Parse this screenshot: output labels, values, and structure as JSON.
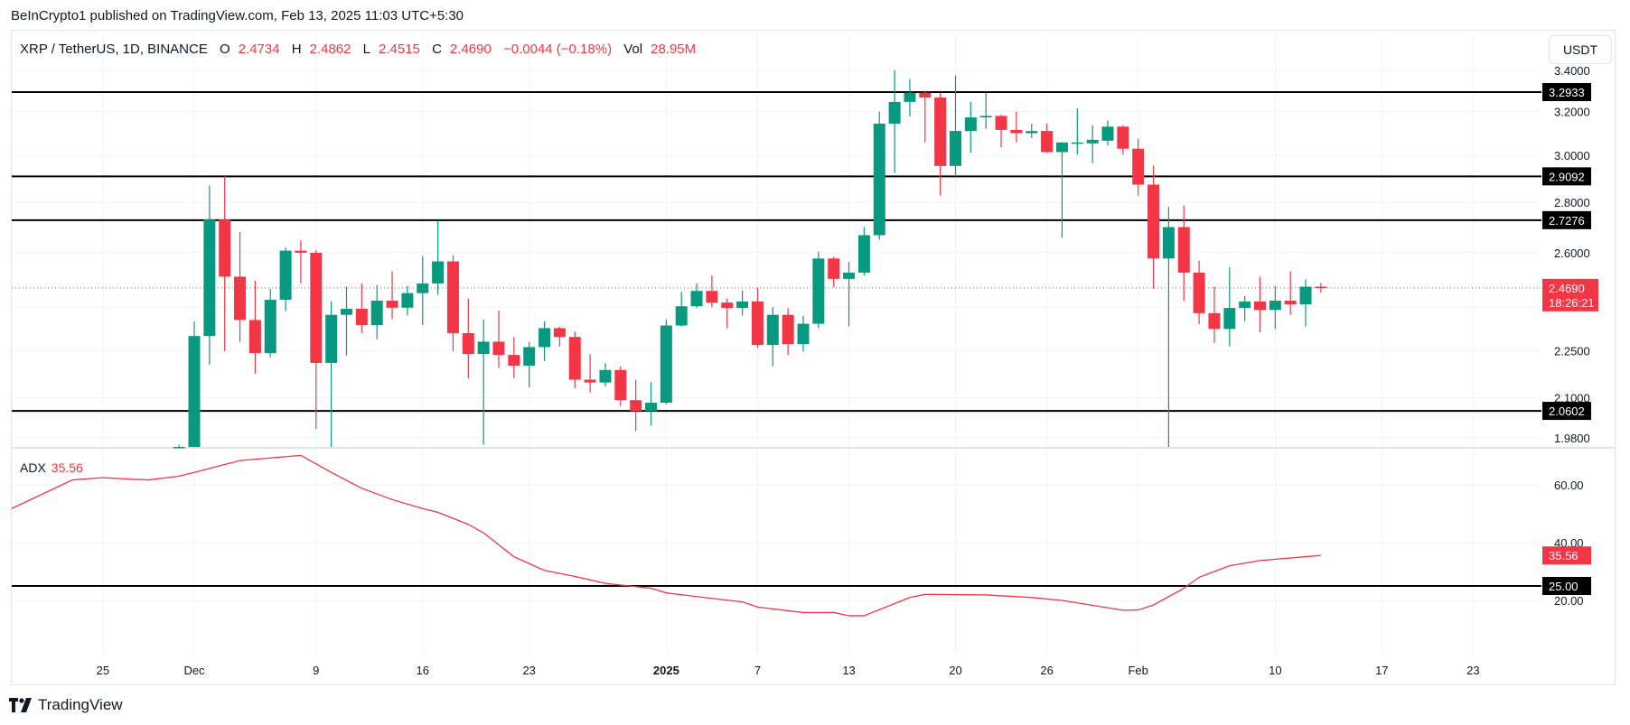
{
  "publisher_line": "BeInCrypto1 published on TradingView.com, Feb 13, 2025 11:03 UTC+5:30",
  "legend": {
    "symbol": "XRP / TetherUS, 1D, BINANCE",
    "o_label": "O",
    "o": "2.4734",
    "h_label": "H",
    "h": "2.4862",
    "l_label": "L",
    "l": "2.4515",
    "c_label": "C",
    "c": "2.4690",
    "change": "−0.0044 (−0.18%)",
    "vol_label": "Vol",
    "vol": "28.95M"
  },
  "currency_button": "USDT",
  "brand": "TradingView",
  "colors": {
    "up": "#089981",
    "down": "#F23645",
    "level": "#000000",
    "adx": "#F23645"
  },
  "chart_data": [
    {
      "type": "candlestick",
      "title": "",
      "y_scale": "log",
      "ylim": [
        1.98,
        3.4
      ],
      "grid": true,
      "y_ticks": [
        {
          "value": 3.4,
          "label": "3.4000"
        },
        {
          "value": 3.2,
          "label": "3.2000"
        },
        {
          "value": 3.0,
          "label": "3.0000"
        },
        {
          "value": 2.8,
          "label": "2.8000"
        },
        {
          "value": 2.6,
          "label": "2.6000"
        },
        {
          "value": 2.25,
          "label": "2.2500"
        },
        {
          "value": 2.1,
          "label": "2.1000"
        },
        {
          "value": 1.98,
          "label": "1.9800"
        }
      ],
      "horizontal_levels": [
        {
          "value": 3.2933,
          "label": "3.2933"
        },
        {
          "value": 2.9092,
          "label": "2.9092"
        },
        {
          "value": 2.7276,
          "label": "2.7276"
        },
        {
          "value": 2.0602,
          "label": "2.0602"
        }
      ],
      "last_price": {
        "value": 2.469,
        "label": "2.4690",
        "countdown": "18:26:21"
      },
      "x_ticks": [
        {
          "date": "2024-11-25",
          "label": "25"
        },
        {
          "date": "2024-12-01",
          "label": "Dec"
        },
        {
          "date": "2024-12-09",
          "label": "9"
        },
        {
          "date": "2024-12-16",
          "label": "16"
        },
        {
          "date": "2024-12-23",
          "label": "23"
        },
        {
          "date": "2025-01-01",
          "label": "2025",
          "bold": true
        },
        {
          "date": "2025-01-07",
          "label": "7"
        },
        {
          "date": "2025-01-13",
          "label": "13"
        },
        {
          "date": "2025-01-20",
          "label": "20"
        },
        {
          "date": "2025-01-26",
          "label": "26"
        },
        {
          "date": "2025-02-01",
          "label": "Feb"
        },
        {
          "date": "2025-02-10",
          "label": "10"
        },
        {
          "date": "2025-02-17",
          "label": "17"
        },
        {
          "date": "2025-02-23",
          "label": "23"
        }
      ],
      "columns": [
        "date",
        "open",
        "high",
        "low",
        "close"
      ],
      "candles": [
        [
          "2024-11-30",
          1.93,
          1.96,
          1.9,
          1.95
        ],
        [
          "2024-12-01",
          1.95,
          2.35,
          1.9,
          2.3
        ],
        [
          "2024-12-02",
          2.3,
          2.87,
          2.205,
          2.73
        ],
        [
          "2024-12-03",
          2.73,
          2.91,
          2.25,
          2.51
        ],
        [
          "2024-12-04",
          2.51,
          2.68,
          2.28,
          2.355
        ],
        [
          "2024-12-05",
          2.355,
          2.495,
          2.176,
          2.243
        ],
        [
          "2024-12-06",
          2.243,
          2.466,
          2.229,
          2.426
        ],
        [
          "2024-12-07",
          2.426,
          2.62,
          2.386,
          2.608
        ],
        [
          "2024-12-08",
          2.608,
          2.648,
          2.485,
          2.6
        ],
        [
          "2024-12-09",
          2.6,
          2.61,
          2.006,
          2.211
        ],
        [
          "2024-12-10",
          2.211,
          2.42,
          1.93,
          2.373
        ],
        [
          "2024-12-11",
          2.373,
          2.474,
          2.235,
          2.394
        ],
        [
          "2024-12-12",
          2.394,
          2.485,
          2.31,
          2.337
        ],
        [
          "2024-12-13",
          2.337,
          2.48,
          2.289,
          2.423
        ],
        [
          "2024-12-14",
          2.423,
          2.53,
          2.358,
          2.398
        ],
        [
          "2024-12-15",
          2.398,
          2.476,
          2.371,
          2.45
        ],
        [
          "2024-12-16",
          2.45,
          2.587,
          2.337,
          2.485
        ],
        [
          "2024-12-17",
          2.485,
          2.727,
          2.445,
          2.567
        ],
        [
          "2024-12-18",
          2.567,
          2.59,
          2.249,
          2.31
        ],
        [
          "2024-12-19",
          2.31,
          2.43,
          2.162,
          2.24
        ],
        [
          "2024-12-20",
          2.24,
          2.357,
          1.96,
          2.281
        ],
        [
          "2024-12-21",
          2.281,
          2.388,
          2.194,
          2.237
        ],
        [
          "2024-12-22",
          2.237,
          2.297,
          2.162,
          2.202
        ],
        [
          "2024-12-23",
          2.202,
          2.28,
          2.133,
          2.263
        ],
        [
          "2024-12-24",
          2.263,
          2.351,
          2.217,
          2.327
        ],
        [
          "2024-12-25",
          2.327,
          2.332,
          2.264,
          2.297
        ],
        [
          "2024-12-26",
          2.297,
          2.315,
          2.13,
          2.157
        ],
        [
          "2024-12-27",
          2.157,
          2.239,
          2.117,
          2.148
        ],
        [
          "2024-12-28",
          2.148,
          2.21,
          2.136,
          2.188
        ],
        [
          "2024-12-29",
          2.188,
          2.199,
          2.075,
          2.093
        ],
        [
          "2024-12-30",
          2.093,
          2.157,
          2.0,
          2.06
        ],
        [
          "2024-12-31",
          2.06,
          2.15,
          2.016,
          2.085
        ],
        [
          "2025-01-01",
          2.085,
          2.357,
          2.08,
          2.336
        ],
        [
          "2025-01-02",
          2.336,
          2.455,
          2.333,
          2.403
        ],
        [
          "2025-01-03",
          2.403,
          2.485,
          2.397,
          2.458
        ],
        [
          "2025-01-04",
          2.458,
          2.514,
          2.4,
          2.416
        ],
        [
          "2025-01-05",
          2.416,
          2.43,
          2.327,
          2.397
        ],
        [
          "2025-01-06",
          2.397,
          2.46,
          2.37,
          2.42
        ],
        [
          "2025-01-07",
          2.42,
          2.47,
          2.26,
          2.27
        ],
        [
          "2025-01-08",
          2.27,
          2.4,
          2.2,
          2.373
        ],
        [
          "2025-01-09",
          2.373,
          2.397,
          2.237,
          2.273
        ],
        [
          "2025-01-10",
          2.273,
          2.37,
          2.248,
          2.342
        ],
        [
          "2025-01-11",
          2.342,
          2.604,
          2.327,
          2.578
        ],
        [
          "2025-01-12",
          2.578,
          2.585,
          2.472,
          2.502
        ],
        [
          "2025-01-13",
          2.502,
          2.565,
          2.333,
          2.525
        ],
        [
          "2025-01-14",
          2.525,
          2.7,
          2.515,
          2.668
        ],
        [
          "2025-01-15",
          2.668,
          3.2,
          2.65,
          3.144
        ],
        [
          "2025-01-16",
          3.144,
          3.4,
          2.924,
          3.246
        ],
        [
          "2025-01-17",
          3.246,
          3.357,
          3.177,
          3.29
        ],
        [
          "2025-01-18",
          3.29,
          3.3,
          3.058,
          3.267
        ],
        [
          "2025-01-19",
          3.267,
          3.29,
          2.828,
          2.954
        ],
        [
          "2025-01-20",
          2.954,
          3.375,
          2.908,
          3.11
        ],
        [
          "2025-01-21",
          3.11,
          3.246,
          3.012,
          3.173
        ],
        [
          "2025-01-22",
          3.173,
          3.29,
          3.12,
          3.18
        ],
        [
          "2025-01-23",
          3.18,
          3.185,
          3.037,
          3.115
        ],
        [
          "2025-01-24",
          3.115,
          3.2,
          3.058,
          3.1
        ],
        [
          "2025-01-25",
          3.1,
          3.144,
          3.078,
          3.11
        ],
        [
          "2025-01-26",
          3.11,
          3.144,
          3.012,
          3.015
        ],
        [
          "2025-01-27",
          3.015,
          3.06,
          2.658,
          3.058
        ],
        [
          "2025-01-28",
          3.055,
          3.215,
          3.004,
          3.058
        ],
        [
          "2025-01-29",
          3.054,
          3.137,
          2.966,
          3.07
        ],
        [
          "2025-01-30",
          3.066,
          3.16,
          3.045,
          3.13
        ],
        [
          "2025-01-31",
          3.13,
          3.137,
          3.004,
          3.03
        ],
        [
          "2025-02-01",
          3.03,
          3.075,
          2.828,
          2.874
        ],
        [
          "2025-02-02",
          2.874,
          2.956,
          2.466,
          2.578
        ],
        [
          "2025-02-03",
          2.578,
          2.783,
          1.77,
          2.7
        ],
        [
          "2025-02-04",
          2.7,
          2.787,
          2.423,
          2.525
        ],
        [
          "2025-02-05",
          2.525,
          2.57,
          2.34,
          2.379
        ],
        [
          "2025-02-06",
          2.379,
          2.474,
          2.277,
          2.324
        ],
        [
          "2025-02-07",
          2.324,
          2.545,
          2.265,
          2.397
        ],
        [
          "2025-02-08",
          2.397,
          2.44,
          2.351,
          2.42
        ],
        [
          "2025-02-09",
          2.42,
          2.51,
          2.313,
          2.39
        ],
        [
          "2025-02-10",
          2.39,
          2.476,
          2.324,
          2.423
        ],
        [
          "2025-02-11",
          2.423,
          2.53,
          2.373,
          2.41
        ],
        [
          "2025-02-12",
          2.41,
          2.5,
          2.333,
          2.4734
        ],
        [
          "2025-02-13",
          2.4734,
          2.4862,
          2.4515,
          2.469
        ]
      ]
    },
    {
      "type": "line",
      "name": "ADX",
      "value_label": "35.56",
      "ylim": [
        0,
        75
      ],
      "y_ticks": [
        {
          "value": 60,
          "label": "60.00"
        },
        {
          "value": 40,
          "label": "40.00"
        },
        {
          "value": 20,
          "label": "20.00"
        }
      ],
      "horizontal_levels": [
        {
          "value": 25,
          "label": "25.00"
        }
      ],
      "last_value": {
        "value": 35.56,
        "label": "35.56"
      },
      "points": [
        [
          "2024-11-19",
          51.8
        ],
        [
          "2024-11-23",
          61.7
        ],
        [
          "2024-11-25",
          62.5
        ],
        [
          "2024-11-27",
          61.9
        ],
        [
          "2024-11-28",
          61.7
        ],
        [
          "2024-11-30",
          63.0
        ],
        [
          "2024-12-01",
          64.3
        ],
        [
          "2024-12-04",
          68.4
        ],
        [
          "2024-12-08",
          70.2
        ],
        [
          "2024-12-10",
          64.3
        ],
        [
          "2024-12-12",
          58.8
        ],
        [
          "2024-12-14",
          54.9
        ],
        [
          "2024-12-16",
          51.8
        ],
        [
          "2024-12-17",
          50.5
        ],
        [
          "2024-12-19",
          46.3
        ],
        [
          "2024-12-20",
          43.4
        ],
        [
          "2024-12-22",
          35.1
        ],
        [
          "2024-12-24",
          30.4
        ],
        [
          "2024-12-26",
          28.3
        ],
        [
          "2024-12-28",
          25.9
        ],
        [
          "2024-12-31",
          24.2
        ],
        [
          "2025-01-01",
          22.6
        ],
        [
          "2025-01-04",
          20.7
        ],
        [
          "2025-01-06",
          19.5
        ],
        [
          "2025-01-07",
          17.7
        ],
        [
          "2025-01-10",
          15.8
        ],
        [
          "2025-01-12",
          15.8
        ],
        [
          "2025-01-13",
          14.7
        ],
        [
          "2025-01-14",
          14.7
        ],
        [
          "2025-01-17",
          21.0
        ],
        [
          "2025-01-18",
          22.1
        ],
        [
          "2025-01-22",
          21.9
        ],
        [
          "2025-01-25",
          21.0
        ],
        [
          "2025-01-27",
          20.0
        ],
        [
          "2025-01-31",
          16.6
        ],
        [
          "2025-02-01",
          16.7
        ],
        [
          "2025-02-02",
          18.4
        ],
        [
          "2025-02-04",
          24.2
        ],
        [
          "2025-02-05",
          28.0
        ],
        [
          "2025-02-07",
          32.0
        ],
        [
          "2025-02-09",
          33.8
        ],
        [
          "2025-02-13",
          35.56
        ]
      ]
    }
  ]
}
